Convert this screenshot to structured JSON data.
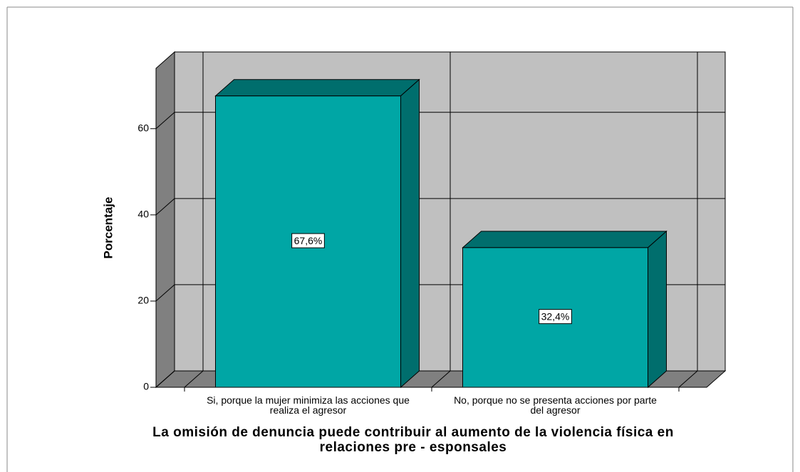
{
  "chart_data": {
    "type": "bar3d",
    "y_label": "Porcentaje",
    "x_label": "La omisión de denuncia puede contribuir al aumento de la violencia física en relaciones pre - esponsales",
    "categories": [
      "Si, porque la mujer minimiza las acciones que realiza el agresor",
      "No, porque no se presenta acciones por parte del agresor"
    ],
    "values": [
      67.6,
      32.4
    ],
    "value_labels": [
      "67,6%",
      "32,4%"
    ],
    "color": "#00a6a5",
    "ylim": [
      0,
      74
    ],
    "yticks": [
      0,
      20,
      40,
      60
    ],
    "grid": true
  }
}
